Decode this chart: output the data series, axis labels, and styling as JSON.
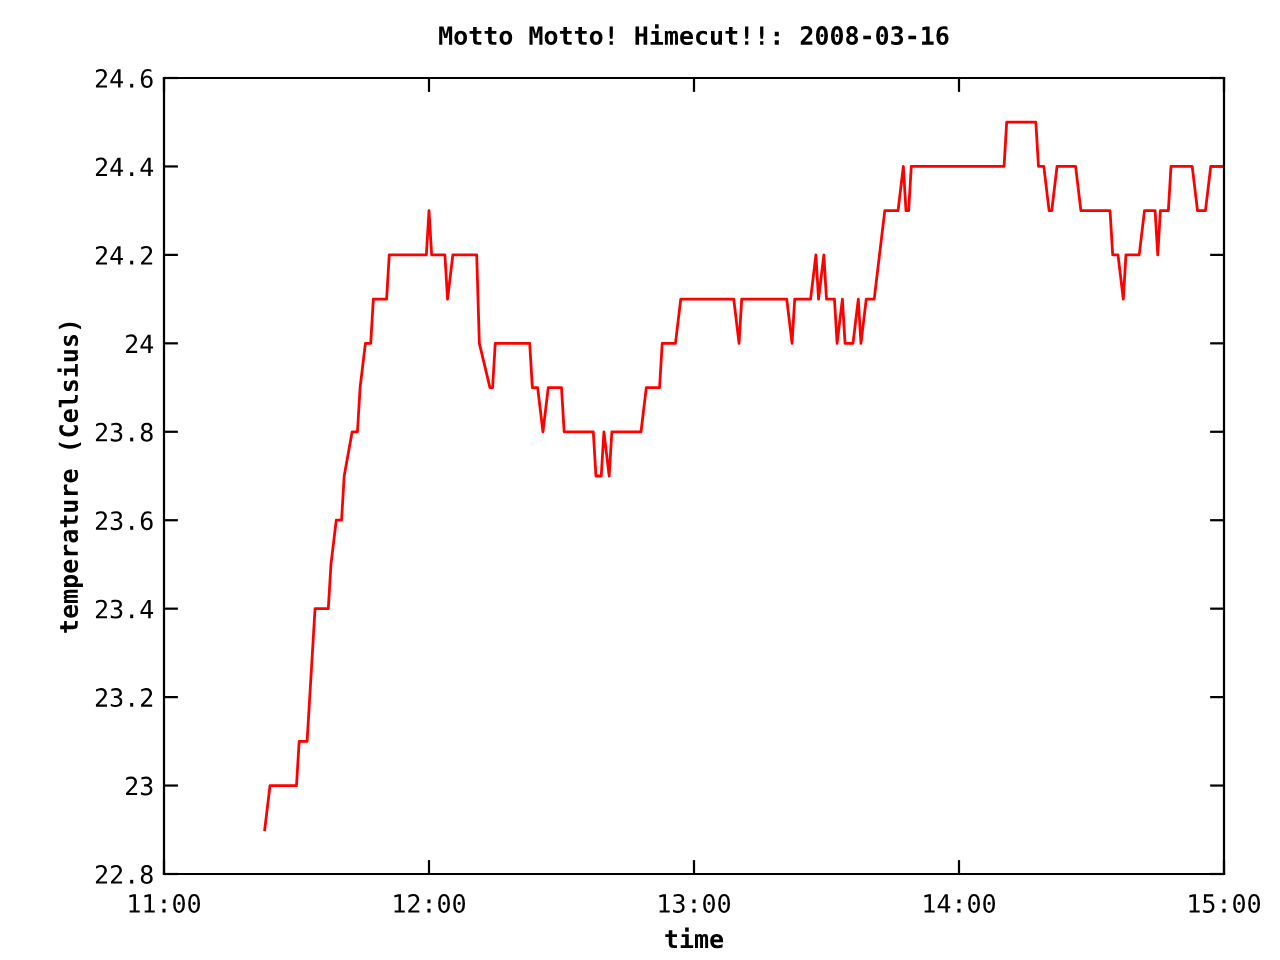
{
  "chart_data": {
    "type": "line",
    "title": "Motto Motto! Himecut!!: 2008-03-16",
    "xlabel": "time",
    "ylabel": "temperature (Celsius)",
    "x": [
      11.38,
      11.4,
      11.5,
      11.51,
      11.54,
      11.55,
      11.57,
      11.62,
      11.63,
      11.65,
      11.67,
      11.68,
      11.71,
      11.73,
      11.74,
      11.76,
      11.78,
      11.79,
      11.84,
      11.85,
      11.99,
      12.0,
      12.01,
      12.06,
      12.07,
      12.09,
      12.1,
      12.18,
      12.19,
      12.23,
      12.24,
      12.25,
      12.38,
      12.39,
      12.41,
      12.43,
      12.45,
      12.5,
      12.51,
      12.62,
      12.63,
      12.65,
      12.66,
      12.68,
      12.69,
      12.8,
      12.82,
      12.87,
      12.88,
      12.93,
      12.95,
      13.15,
      13.17,
      13.18,
      13.35,
      13.37,
      13.38,
      13.44,
      13.46,
      13.47,
      13.49,
      13.5,
      13.53,
      13.54,
      13.56,
      13.57,
      13.6,
      13.62,
      13.63,
      13.65,
      13.68,
      13.72,
      13.77,
      13.79,
      13.8,
      13.81,
      13.82,
      14.17,
      14.18,
      14.29,
      14.3,
      14.32,
      14.34,
      14.35,
      14.37,
      14.44,
      14.46,
      14.57,
      14.58,
      14.6,
      14.62,
      14.63,
      14.68,
      14.7,
      14.74,
      14.75,
      14.76,
      14.79,
      14.8,
      14.88,
      14.9,
      14.93,
      14.95,
      15.0
    ],
    "series": [
      {
        "color": "#ff0000",
        "values": [
          22.9,
          23.0,
          23.0,
          23.1,
          23.1,
          23.2,
          23.4,
          23.4,
          23.5,
          23.6,
          23.6,
          23.7,
          23.8,
          23.8,
          23.9,
          24.0,
          24.0,
          24.1,
          24.1,
          24.2,
          24.2,
          24.3,
          24.2,
          24.2,
          24.1,
          24.2,
          24.2,
          24.2,
          24.0,
          23.9,
          23.9,
          24.0,
          24.0,
          23.9,
          23.9,
          23.8,
          23.9,
          23.9,
          23.8,
          23.8,
          23.7,
          23.7,
          23.8,
          23.7,
          23.8,
          23.8,
          23.9,
          23.9,
          24.0,
          24.0,
          24.1,
          24.1,
          24.0,
          24.1,
          24.1,
          24.0,
          24.1,
          24.1,
          24.2,
          24.1,
          24.2,
          24.1,
          24.1,
          24.0,
          24.1,
          24.0,
          24.0,
          24.1,
          24.0,
          24.1,
          24.1,
          24.3,
          24.3,
          24.4,
          24.3,
          24.3,
          24.4,
          24.4,
          24.5,
          24.5,
          24.4,
          24.4,
          24.3,
          24.3,
          24.4,
          24.4,
          24.3,
          24.3,
          24.2,
          24.2,
          24.1,
          24.2,
          24.2,
          24.3,
          24.3,
          24.2,
          24.3,
          24.3,
          24.4,
          24.4,
          24.3,
          24.3,
          24.4,
          24.4
        ]
      }
    ],
    "xlim": [
      11,
      15
    ],
    "xticks": [
      {
        "value": 11,
        "label": "11:00"
      },
      {
        "value": 12,
        "label": "12:00"
      },
      {
        "value": 13,
        "label": "13:00"
      },
      {
        "value": 14,
        "label": "14:00"
      },
      {
        "value": 15,
        "label": "15:00"
      }
    ],
    "ylim": [
      22.8,
      24.6
    ],
    "yticks": [
      22.8,
      23,
      23.2,
      23.4,
      23.6,
      23.8,
      24,
      24.2,
      24.4,
      24.6
    ],
    "grid": false,
    "legend": false,
    "marker": "none",
    "line_style": "solid"
  }
}
